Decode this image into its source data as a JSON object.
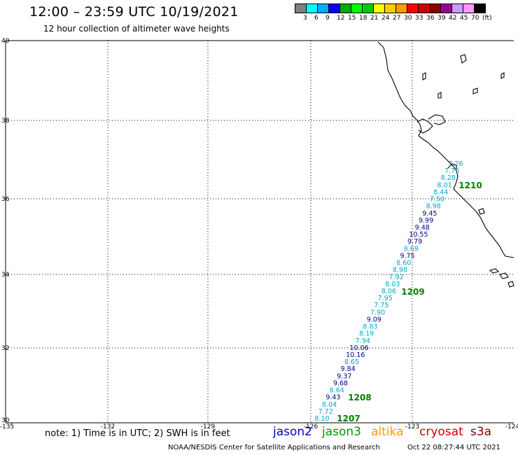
{
  "title": "12:00 – 23:59 UTC 10/19/2021",
  "subtitle": "12 hour collection of altimeter wave heights",
  "legend": {
    "colors": [
      "#7f7f7f",
      "#00ffff",
      "#00aaff",
      "#0000ff",
      "#00aa00",
      "#00ff00",
      "#00cc00",
      "#ffff00",
      "#ffcc00",
      "#ff9900",
      "#ff0000",
      "#cc0000",
      "#880000",
      "#990099",
      "#cc99ff",
      "#ff99ff",
      "#000000"
    ],
    "labels": [
      "3",
      "6",
      "9",
      "12",
      "15",
      "18",
      "21",
      "24",
      "27",
      "30",
      "33",
      "36",
      "39",
      "42",
      "45",
      "70",
      "(ft)"
    ]
  },
  "map": {
    "lat_range": [
      30,
      40
    ],
    "lon_range": [
      -135,
      -124
    ],
    "lat_labels": [
      "40",
      "38",
      "36",
      "34",
      "32",
      "30"
    ],
    "lon_labels": [
      "-135",
      "-132",
      "-129",
      "-126",
      "-123",
      "-124"
    ],
    "grid": "dotted",
    "track_color_light": "#00aacc",
    "track_color_dark": "#00008b",
    "pass_label_color": "#008000",
    "points": [
      {
        "value": "7.26",
        "shade": "light"
      },
      {
        "value": "7.76",
        "shade": "light"
      },
      {
        "value": "8.28",
        "shade": "light"
      },
      {
        "value": "8.01",
        "shade": "light"
      },
      {
        "value": "8.44",
        "shade": "light"
      },
      {
        "value": "7.50",
        "shade": "light"
      },
      {
        "value": "8.98",
        "shade": "light"
      },
      {
        "value": "9.45",
        "shade": "dark"
      },
      {
        "value": "9.99",
        "shade": "dark"
      },
      {
        "value": "9.48",
        "shade": "dark"
      },
      {
        "value": "10.55",
        "shade": "dark"
      },
      {
        "value": "9.79",
        "shade": "dark"
      },
      {
        "value": "8.69",
        "shade": "light"
      },
      {
        "value": "9.75",
        "shade": "dark"
      },
      {
        "value": "8.60",
        "shade": "light"
      },
      {
        "value": "8.98",
        "shade": "light"
      },
      {
        "value": "7.92",
        "shade": "light"
      },
      {
        "value": "8.03",
        "shade": "light"
      },
      {
        "value": "8.06",
        "shade": "light"
      },
      {
        "value": "7.95",
        "shade": "light"
      },
      {
        "value": "7.75",
        "shade": "light"
      },
      {
        "value": "7.90",
        "shade": "light"
      },
      {
        "value": "9.09",
        "shade": "dark"
      },
      {
        "value": "8.83",
        "shade": "light"
      },
      {
        "value": "8.19",
        "shade": "light"
      },
      {
        "value": "7.94",
        "shade": "light"
      },
      {
        "value": "10.06",
        "shade": "dark"
      },
      {
        "value": "10.16",
        "shade": "dark"
      },
      {
        "value": "8.65",
        "shade": "light"
      },
      {
        "value": "9.84",
        "shade": "dark"
      },
      {
        "value": "9.37",
        "shade": "dark"
      },
      {
        "value": "9.68",
        "shade": "dark"
      },
      {
        "value": "8.64",
        "shade": "light"
      },
      {
        "value": "9.43",
        "shade": "dark"
      },
      {
        "value": "8.04",
        "shade": "light"
      },
      {
        "value": "7.72",
        "shade": "light"
      },
      {
        "value": "8.10",
        "shade": "light"
      }
    ],
    "pass_labels": [
      "1210",
      "1209",
      "1208",
      "1207"
    ]
  },
  "footer": {
    "note": "note: 1) Time is in UTC; 2) SWH is in feet",
    "satellites": [
      {
        "name": "jason2",
        "color": "#0000cc"
      },
      {
        "name": "jason3",
        "color": "#009900"
      },
      {
        "name": "altika",
        "color": "#ff9900"
      },
      {
        "name": "cryosat",
        "color": "#cc0000"
      },
      {
        "name": "s3a",
        "color": "#880000"
      }
    ],
    "credit": "NOAA/NESDIS Center for Satellite Applications and Research",
    "timestamp": "Oct 22 08:27:44 UTC 2021"
  }
}
